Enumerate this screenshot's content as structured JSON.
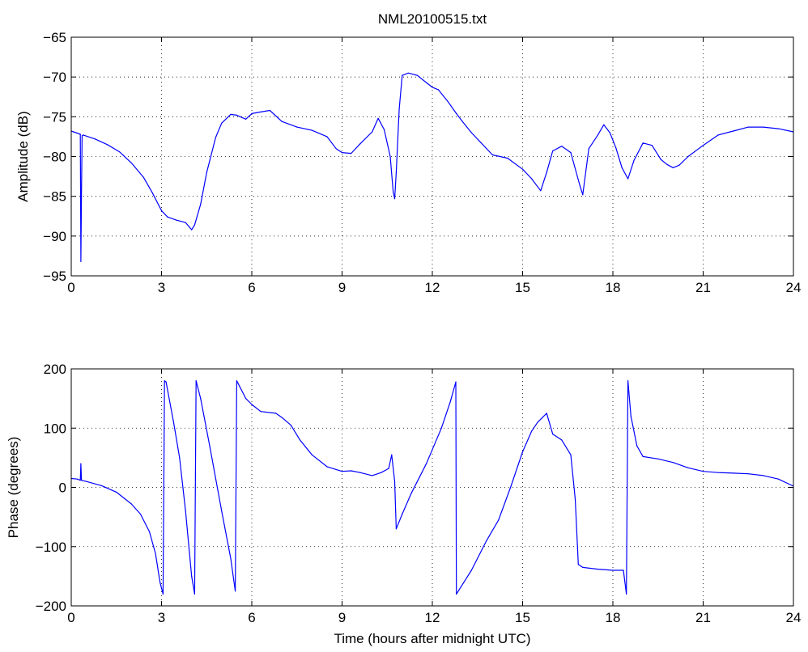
{
  "figure": {
    "title": "NML20100515.txt"
  },
  "chart_data": [
    {
      "type": "line",
      "title": "NML20100515.txt",
      "xlabel": "",
      "ylabel": "Amplitude (dB)",
      "xlim": [
        0,
        24
      ],
      "ylim": [
        -95,
        -65
      ],
      "xticks": [
        0,
        3,
        6,
        9,
        12,
        15,
        18,
        21,
        24
      ],
      "yticks": [
        -95,
        -90,
        -85,
        -80,
        -75,
        -70,
        -65
      ],
      "grid": true,
      "series_color": "#0000ff",
      "series": [
        {
          "name": "",
          "x": [
            0,
            0.3,
            0.32,
            0.34,
            0.36,
            0.4,
            0.8,
            1.2,
            1.6,
            2.0,
            2.4,
            2.7,
            3.0,
            3.2,
            3.5,
            3.8,
            4.0,
            4.1,
            4.3,
            4.5,
            4.8,
            5.0,
            5.3,
            5.5,
            5.8,
            6.0,
            6.3,
            6.6,
            7.0,
            7.5,
            8.0,
            8.5,
            8.8,
            9.0,
            9.3,
            9.6,
            10.0,
            10.2,
            10.4,
            10.6,
            10.7,
            10.75,
            10.8,
            10.9,
            11.0,
            11.2,
            11.5,
            11.8,
            12.0,
            12.2,
            12.5,
            12.8,
            13.0,
            13.3,
            13.6,
            14.0,
            14.5,
            15.0,
            15.3,
            15.6,
            15.8,
            16.0,
            16.3,
            16.6,
            16.9,
            17.0,
            17.2,
            17.5,
            17.7,
            17.9,
            18.1,
            18.3,
            18.5,
            18.7,
            19.0,
            19.3,
            19.6,
            19.8,
            20.0,
            20.2,
            20.5,
            21.0,
            21.5,
            22.0,
            22.5,
            23.0,
            23.5,
            24.0
          ],
          "y": [
            -76.8,
            -77.2,
            -93.2,
            -85,
            -77.4,
            -77.3,
            -77.8,
            -78.5,
            -79.4,
            -80.8,
            -82.6,
            -84.6,
            -86.8,
            -87.6,
            -88.0,
            -88.3,
            -89.2,
            -88.6,
            -86.0,
            -82.0,
            -77.6,
            -75.8,
            -74.7,
            -74.8,
            -75.3,
            -74.6,
            -74.4,
            -74.2,
            -75.6,
            -76.3,
            -76.7,
            -77.5,
            -79.0,
            -79.5,
            -79.6,
            -78.4,
            -76.9,
            -75.2,
            -76.6,
            -80.0,
            -84.5,
            -85.3,
            -82.0,
            -74.0,
            -69.8,
            -69.5,
            -69.8,
            -70.7,
            -71.3,
            -71.6,
            -73.0,
            -74.6,
            -75.6,
            -77.0,
            -78.2,
            -79.8,
            -80.2,
            -81.6,
            -82.8,
            -84.3,
            -82.0,
            -79.3,
            -78.7,
            -79.5,
            -83.6,
            -84.8,
            -79.0,
            -77.3,
            -76.0,
            -77.0,
            -78.9,
            -81.4,
            -82.8,
            -80.5,
            -78.3,
            -78.6,
            -80.4,
            -81.0,
            -81.4,
            -81.1,
            -80.0,
            -78.6,
            -77.3,
            -76.8,
            -76.3,
            -76.3,
            -76.5,
            -76.9
          ]
        }
      ]
    },
    {
      "type": "line",
      "title": "",
      "xlabel": "Time (hours after midnight UTC)",
      "ylabel": "Phase (degrees)",
      "xlim": [
        0,
        24
      ],
      "ylim": [
        -200,
        200
      ],
      "xticks": [
        0,
        3,
        6,
        9,
        12,
        15,
        18,
        21,
        24
      ],
      "yticks": [
        -200,
        -100,
        0,
        100,
        200
      ],
      "grid": true,
      "series_color": "#0000ff",
      "series": [
        {
          "name": "",
          "x": [
            0,
            0.2,
            0.3,
            0.32,
            0.34,
            0.5,
            1.0,
            1.5,
            2.0,
            2.3,
            2.6,
            2.8,
            2.95,
            3.05,
            3.1,
            3.15,
            3.4,
            3.6,
            3.8,
            4.0,
            4.1,
            4.15,
            4.3,
            4.6,
            5.0,
            5.3,
            5.45,
            5.5,
            5.8,
            6.0,
            6.3,
            6.8,
            7.0,
            7.3,
            7.6,
            8.0,
            8.5,
            9.0,
            9.3,
            9.6,
            10.0,
            10.3,
            10.55,
            10.65,
            10.75,
            10.8,
            11.0,
            11.3,
            11.8,
            12.3,
            12.6,
            12.78,
            12.8,
            13.3,
            13.8,
            14.2,
            14.6,
            15.0,
            15.3,
            15.5,
            15.8,
            16.0,
            16.3,
            16.6,
            16.75,
            16.85,
            17.0,
            17.5,
            18.0,
            18.35,
            18.45,
            18.5,
            18.6,
            18.8,
            19.0,
            19.5,
            20.0,
            20.5,
            21.0,
            21.5,
            22.0,
            22.5,
            23.0,
            23.5,
            24.0
          ],
          "y": [
            15,
            14,
            12,
            40,
            12,
            10,
            3,
            -8,
            -28,
            -45,
            -75,
            -112,
            -160,
            -180,
            180,
            178,
            110,
            50,
            -40,
            -150,
            -180,
            180,
            150,
            70,
            -40,
            -120,
            -175,
            180,
            150,
            140,
            128,
            125,
            118,
            105,
            80,
            55,
            35,
            27,
            28,
            25,
            20,
            25,
            32,
            55,
            10,
            -70,
            -45,
            -10,
            40,
            100,
            145,
            178,
            -180,
            -140,
            -90,
            -55,
            0,
            60,
            95,
            110,
            125,
            90,
            80,
            55,
            -20,
            -130,
            -135,
            -138,
            -140,
            -140,
            -180,
            180,
            120,
            70,
            52,
            48,
            42,
            33,
            27,
            25,
            24,
            23,
            20,
            14,
            2
          ]
        }
      ]
    }
  ]
}
